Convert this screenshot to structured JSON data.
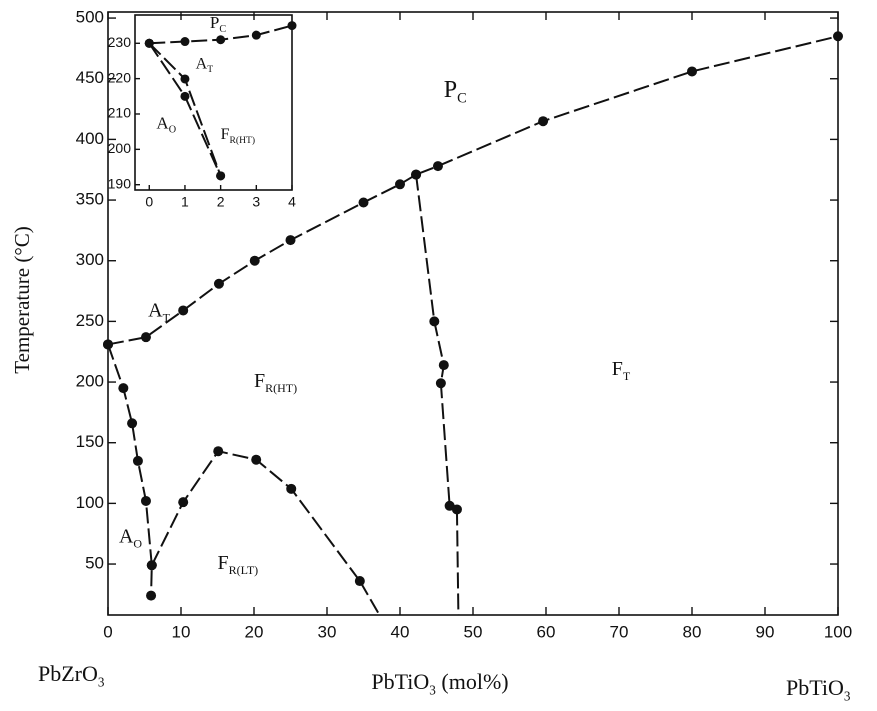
{
  "chart_data": [
    {
      "type": "scatter",
      "y_label": "Temperature (°C)",
      "xlim": [
        0,
        100
      ],
      "ylim": [
        8,
        505
      ],
      "xticks": [
        0,
        10,
        20,
        30,
        40,
        50,
        60,
        70,
        80,
        90,
        100
      ],
      "yticks": [
        50,
        100,
        150,
        200,
        250,
        300,
        350,
        400,
        450,
        500
      ],
      "color": "#111111",
      "series": [
        {
          "x": [
            0,
            5.2,
            10.3,
            15.2,
            20.1,
            25,
            35,
            40,
            42.2,
            45.2,
            59.6,
            80,
            100
          ],
          "values": [
            231,
            237,
            259,
            281,
            300,
            317,
            348,
            363,
            371,
            378,
            415,
            456,
            485
          ],
          "marker": true
        },
        {
          "x": [
            42.2,
            44.7,
            46,
            45.6,
            46.8,
            47.8
          ],
          "values": [
            371,
            250,
            214,
            199,
            98,
            95
          ],
          "marker": true
        },
        {
          "x": [
            47.8,
            48
          ],
          "values": [
            95,
            8
          ],
          "marker": false
        },
        {
          "x": [
            0,
            2.1,
            3.3,
            4.1,
            5.2,
            6,
            5.9
          ],
          "values": [
            231,
            195,
            166,
            135,
            102,
            49,
            24
          ],
          "marker": true
        },
        {
          "x": [
            6,
            10.3,
            15.1,
            20.3,
            25.1,
            34.5
          ],
          "values": [
            49,
            101,
            143,
            136,
            112,
            36
          ],
          "marker": true
        },
        {
          "x": [
            34.5,
            37
          ],
          "values": [
            36,
            10
          ],
          "marker": false
        }
      ],
      "labels": [
        {
          "main": "P",
          "sub": "C"
        },
        {
          "main": "A",
          "sub": "T"
        },
        {
          "main": "F",
          "sub": "R(HT)"
        },
        {
          "main": "F",
          "sub": "T"
        },
        {
          "main": "A",
          "sub": "O"
        },
        {
          "main": "F",
          "sub": "R(LT)"
        }
      ],
      "bottom_labels": [
        {
          "main": "PbZrO",
          "sub": "3"
        },
        {
          "main": "PbTiO",
          "sub": "3",
          "tail": " (mol%)"
        },
        {
          "main": "PbTiO",
          "sub": "3"
        }
      ]
    },
    {
      "type": "scatter",
      "xlim": [
        -0.4,
        4
      ],
      "ylim": [
        188.5,
        238
      ],
      "xticks": [
        0,
        1,
        2,
        3,
        4
      ],
      "yticks": [
        190,
        200,
        210,
        220,
        230
      ],
      "color": "#111111",
      "series": [
        {
          "x": [
            0,
            1,
            2,
            3,
            4
          ],
          "values": [
            230,
            230.5,
            231,
            232.3,
            235
          ],
          "marker": true
        },
        {
          "x": [
            0,
            1,
            2
          ],
          "values": [
            230,
            219.9,
            192.5
          ],
          "marker": true
        },
        {
          "x": [
            0,
            1,
            2
          ],
          "values": [
            230,
            215,
            192.5
          ],
          "marker": true
        }
      ],
      "labels": [
        {
          "main": "P",
          "sub": "C"
        },
        {
          "main": "A",
          "sub": "T"
        },
        {
          "main": "A",
          "sub": "O"
        },
        {
          "main": "F",
          "sub": "R(HT)"
        }
      ]
    }
  ]
}
